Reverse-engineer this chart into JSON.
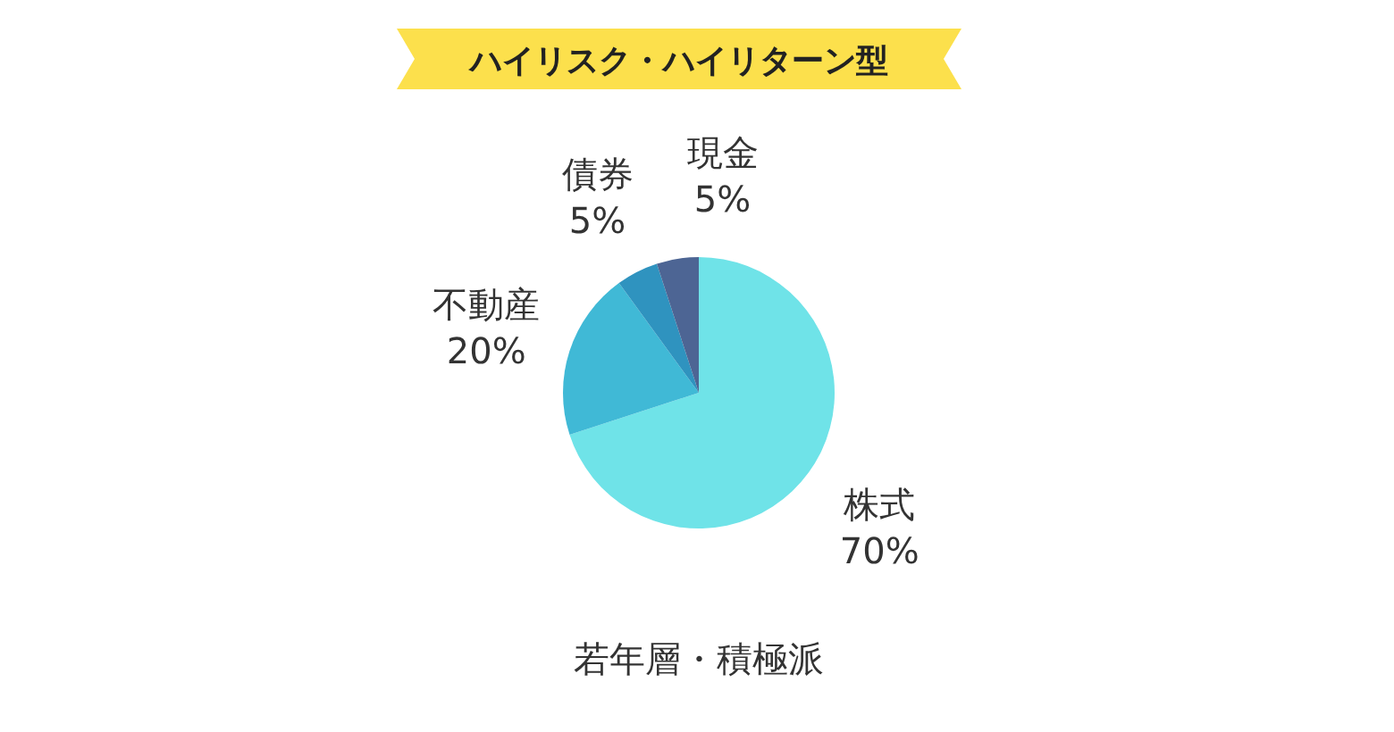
{
  "chart_data": {
    "type": "pie",
    "title": "ハイリスク・ハイリターン型",
    "subtitle": "若年層・積極派",
    "categories": [
      "株式",
      "不動産",
      "債券",
      "現金"
    ],
    "values": [
      70,
      20,
      5,
      5
    ],
    "colors": [
      "#6fe3e8",
      "#40b9d6",
      "#2f93bf",
      "#4d6594"
    ],
    "value_labels": [
      "70%",
      "20%",
      "5%",
      "5%"
    ]
  }
}
